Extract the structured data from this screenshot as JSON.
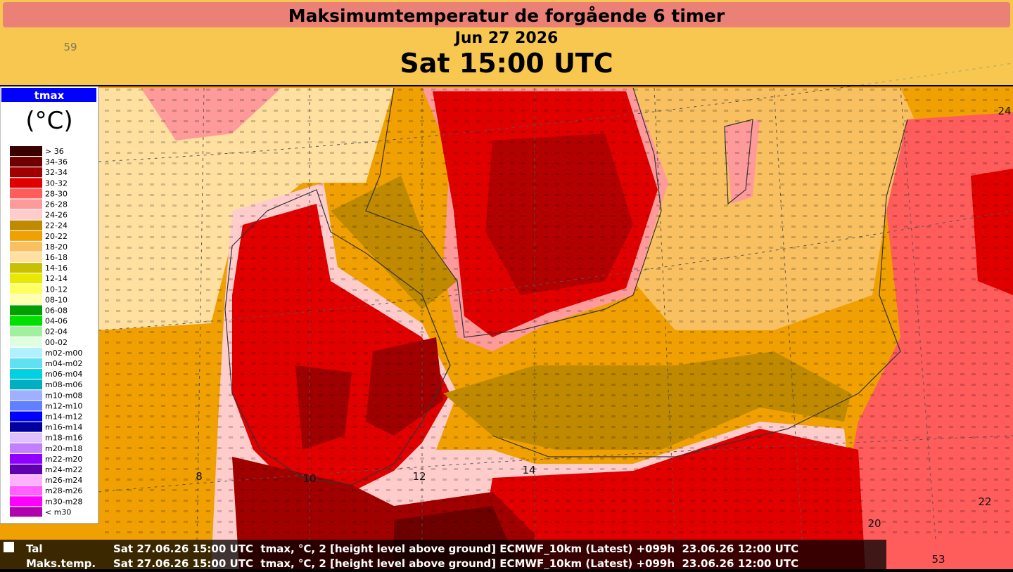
{
  "header": {
    "title": "Maksimumtemperatur de forgående 6 timer",
    "date": "Jun 27 2026",
    "time": "Sat 15:00 UTC"
  },
  "legend": {
    "title": "tmax",
    "unit": "(°C)",
    "items": [
      {
        "label": "> 36",
        "color": "#3a0000"
      },
      {
        "label": "34-36",
        "color": "#6e0000"
      },
      {
        "label": "32-34",
        "color": "#a00000"
      },
      {
        "label": "30-32",
        "color": "#e00000"
      },
      {
        "label": "28-30",
        "color": "#ff5c5c"
      },
      {
        "label": "26-28",
        "color": "#ff9a9a"
      },
      {
        "label": "24-26",
        "color": "#ffcccc"
      },
      {
        "label": "22-24",
        "color": "#c08a00"
      },
      {
        "label": "20-22",
        "color": "#f0a000"
      },
      {
        "label": "18-20",
        "color": "#f8c060"
      },
      {
        "label": "16-18",
        "color": "#ffe0a0"
      },
      {
        "label": "14-16",
        "color": "#c8c000"
      },
      {
        "label": "12-14",
        "color": "#e8e800"
      },
      {
        "label": "10-12",
        "color": "#ffff60"
      },
      {
        "label": "08-10",
        "color": "#ffffb0"
      },
      {
        "label": "06-08",
        "color": "#00a000"
      },
      {
        "label": "04-06",
        "color": "#00e000"
      },
      {
        "label": "02-04",
        "color": "#a0f0a0"
      },
      {
        "label": "00-02",
        "color": "#e0ffe0"
      },
      {
        "label": "m02-m00",
        "color": "#b0f0ff"
      },
      {
        "label": "m04-m02",
        "color": "#60e0f0"
      },
      {
        "label": "m06-m04",
        "color": "#00d0e0"
      },
      {
        "label": "m08-m06",
        "color": "#00b0c0"
      },
      {
        "label": "m10-m08",
        "color": "#a0b0ff"
      },
      {
        "label": "m12-m10",
        "color": "#6080ff"
      },
      {
        "label": "m14-m12",
        "color": "#0000ff"
      },
      {
        "label": "m16-m14",
        "color": "#0000a0"
      },
      {
        "label": "m18-m16",
        "color": "#e0c0ff"
      },
      {
        "label": "m20-m18",
        "color": "#c080ff"
      },
      {
        "label": "m22-m20",
        "color": "#9000ff"
      },
      {
        "label": "m24-m22",
        "color": "#6000b0"
      },
      {
        "label": "m26-m24",
        "color": "#ffb0ff"
      },
      {
        "label": "m28-m26",
        "color": "#ff60ff"
      },
      {
        "label": "m30-m28",
        "color": "#ff00ff"
      },
      {
        "label": "< m30",
        "color": "#b000b0"
      }
    ]
  },
  "map_labels": [
    "59",
    "24",
    "8",
    "10",
    "12",
    "14",
    "20",
    "22",
    "53"
  ],
  "footer": {
    "rows": [
      {
        "name": "Tal",
        "info": "Sat 27.06.26 15:00 UTC  tmax, °C, 2 [height level above ground] ECMWF_10km (Latest) +099h  23.06.26 12:00 UTC"
      },
      {
        "name": "Maks.temp.",
        "info": "Sat 27.06.26 15:00 UTC  tmax, °C, 2 [height level above ground] ECMWF_10km (Latest) +099h  23.06.26 12:00 UTC"
      }
    ]
  }
}
